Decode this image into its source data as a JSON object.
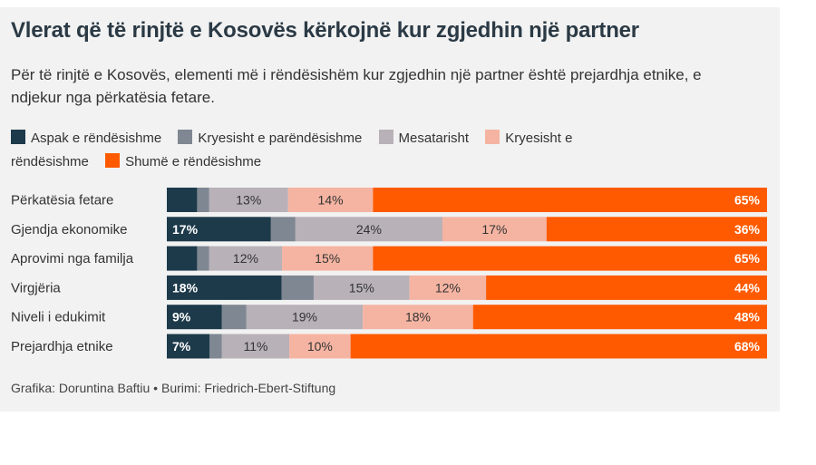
{
  "title": "Vlerat që të rinjtë e Kosovës kërkojnë kur zgjedhin një partner",
  "subtitle": "Për të rinjtë e Kosovës, elementi më i rëndësishëm kur zgjedhin një partner është prejardhja etnike, e ndjekur nga përkatësia fetare.",
  "source": "Grafika: Doruntina Baftiu • Burimi: Friedrich-Ebert-Stiftung",
  "colors": [
    "#1d3a4a",
    "#7f8792",
    "#b8b1b8",
    "#f5b4a2",
    "#ff5a00"
  ],
  "label_colors": [
    "#ffffff",
    "#ffffff",
    "#333333",
    "#333333",
    "#ffffff"
  ],
  "chart_data": {
    "type": "bar",
    "orientation": "horizontal",
    "stacked": true,
    "unit": "%",
    "categories": [
      "Përkatësia fetare",
      "Gjendja ekonomike",
      "Aprovimi nga familja",
      "Virgjëria",
      "Niveli i edukimit",
      "Prejardhja etnike"
    ],
    "series": [
      {
        "name": "Aspak e rëndësishme",
        "values": [
          5,
          17,
          5,
          18,
          9,
          7
        ],
        "labels": [
          "",
          "17%",
          "",
          "18%",
          "9%",
          "7%"
        ]
      },
      {
        "name": "Kryesisht e parëndësishme",
        "values": [
          2,
          4,
          2,
          5,
          4,
          2
        ],
        "labels": [
          "",
          "",
          "",
          "",
          "",
          ""
        ]
      },
      {
        "name": "Mesatarisht",
        "values": [
          13,
          24,
          12,
          15,
          19,
          11
        ],
        "labels": [
          "13%",
          "24%",
          "12%",
          "15%",
          "19%",
          "11%"
        ]
      },
      {
        "name": "Kryesisht e rëndësishme",
        "values": [
          14,
          17,
          15,
          12,
          18,
          10
        ],
        "labels": [
          "14%",
          "17%",
          "15%",
          "12%",
          "18%",
          "10%"
        ]
      },
      {
        "name": "Shumë e rëndësishme",
        "values": [
          65,
          36,
          65,
          44,
          48,
          68
        ],
        "labels": [
          "65%",
          "36%",
          "65%",
          "44%",
          "48%",
          "68%"
        ]
      }
    ],
    "xlim": [
      0,
      100
    ]
  }
}
